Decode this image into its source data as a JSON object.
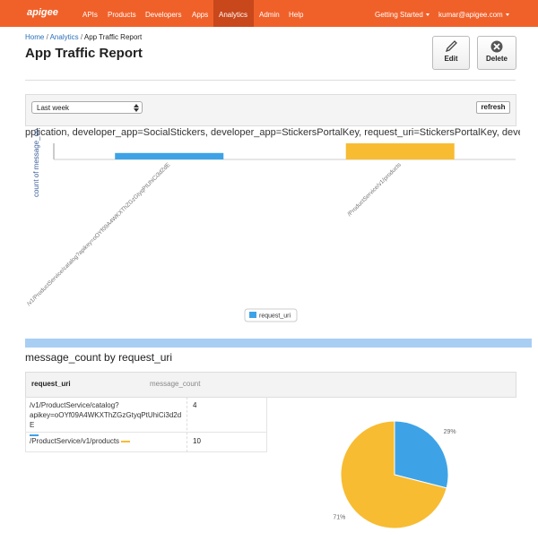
{
  "nav": {
    "logo": "apigee",
    "items": [
      "APIs",
      "Products",
      "Developers",
      "Apps",
      "Analytics",
      "Admin",
      "Help"
    ],
    "right": [
      "Getting Started",
      "kumar@apigee.com"
    ]
  },
  "breadcrumb": {
    "links": [
      "Home",
      "Analytics"
    ],
    "separator": "/",
    "current": "App Traffic Report"
  },
  "header": {
    "title": "App Traffic Report",
    "actions": [
      "Edit",
      "Delete"
    ]
  },
  "filter": {
    "period": "Last week",
    "refresh": "refresh",
    "text": "pplication, developer_app=SocialStickers, developer_app=StickersPortalKey, request_uri=StickersPortalKey, developer_"
  },
  "chart_data": [
    {
      "type": "bar",
      "y_label": "count of message_co",
      "categories": [
        "/v1/ProductService/catalog?apikey=oOYf09A4WKXThZGzGtyqPtUhiCi3d2dE",
        "/ProductService/v1/products"
      ],
      "values": [
        4,
        10
      ],
      "colors": [
        "#3ea3e6",
        "#f8bc32"
      ],
      "ylim": [
        0,
        10
      ],
      "legend": "request_uri"
    },
    {
      "type": "pie",
      "values": [
        29,
        71
      ],
      "value_labels": [
        "29%",
        "71%"
      ],
      "colors": [
        "#3ea3e6",
        "#f8bc32"
      ]
    }
  ],
  "table": {
    "title": "message_count by request_uri",
    "headers": [
      "request_uri",
      "message_count"
    ],
    "rows": [
      [
        "/v1/ProductService/catalog?apikey=oOYf09A4WKXThZGzGtyqPtUhiCi3d2dE",
        "4"
      ],
      [
        "/ProductService/v1/products",
        "10"
      ]
    ]
  }
}
